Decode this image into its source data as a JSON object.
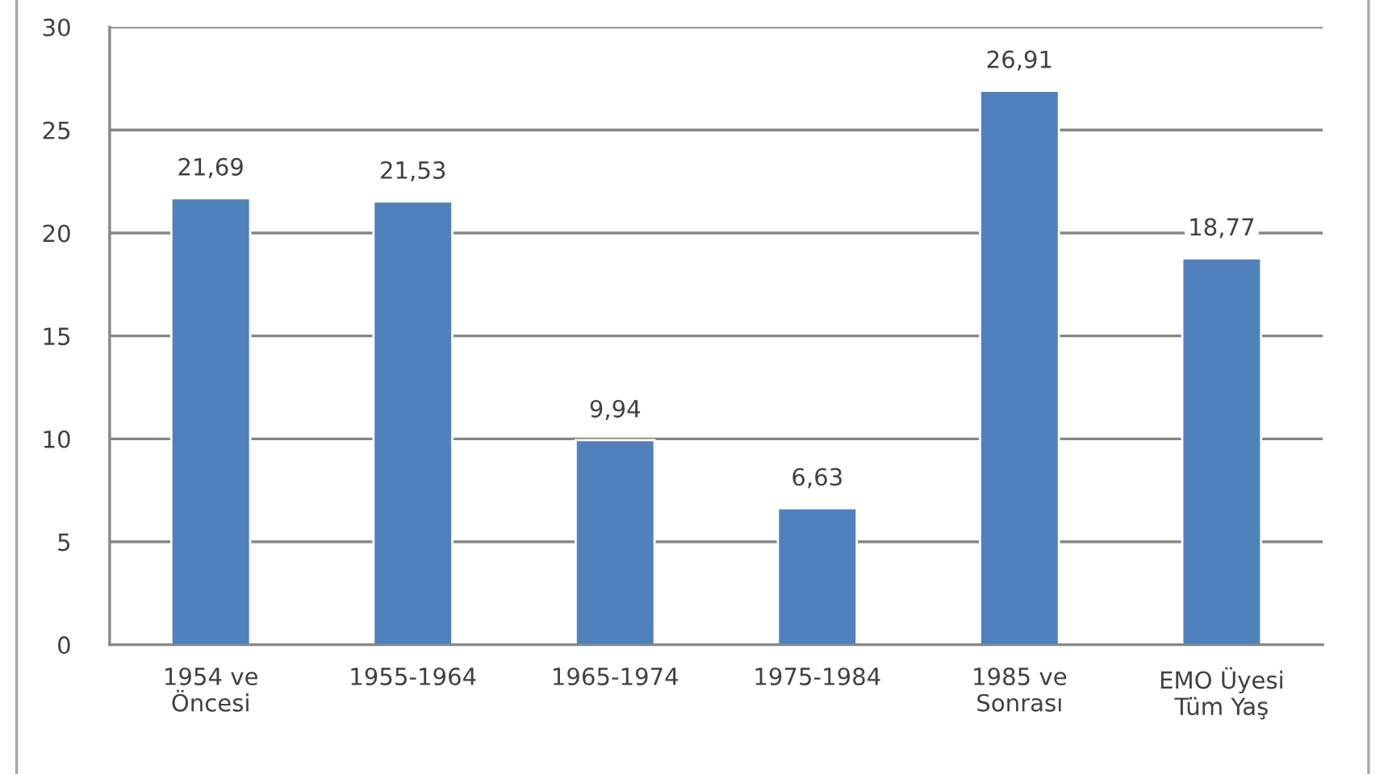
{
  "chart_data": {
    "type": "bar",
    "categories": [
      "1954 ve\nÖncesi",
      "1955-1964",
      "1965-1974",
      "1975-1984",
      "1985 ve\nSonrası",
      "EMO Üyesi\nTüm Yaş"
    ],
    "values": [
      21.69,
      21.53,
      9.94,
      6.63,
      26.91,
      18.77
    ],
    "value_labels": [
      "21,69",
      "21,53",
      "9,94",
      "6,63",
      "26,91",
      "18,77"
    ],
    "color": "#4f81bd",
    "ylim": [
      0,
      30
    ],
    "yticks": [
      0,
      5,
      10,
      15,
      20,
      25,
      30
    ],
    "grid": "y",
    "legend": false
  }
}
